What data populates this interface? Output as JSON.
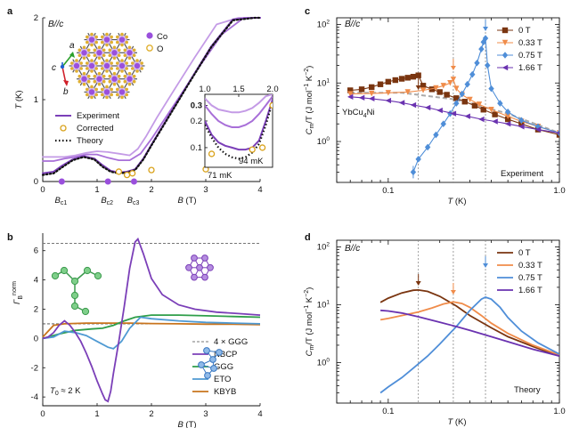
{
  "colors": {
    "experiment": "#7b3fb8",
    "experiment_light": "#c49be6",
    "corrected": "#d9a21b",
    "theory": "#111111",
    "c0T": "#7a3510",
    "c033T": "#f08c4a",
    "c075T": "#4f8ed8",
    "c166T": "#6a32b0",
    "nbcp": "#7b3fb8",
    "ggg": "#2e9e49",
    "eto": "#4f9ad3",
    "kbyb": "#c8741d",
    "ref": "#777777",
    "co": "#9a4fdc",
    "o": "#e0b030"
  },
  "panels": {
    "a": {
      "label": "a",
      "condition": "B//c",
      "axis_c": "c",
      "axis_a": "a",
      "axis_b": "b",
      "legend_co": "Co",
      "legend_o": "O",
      "inset_annotation_94": "94 mK",
      "inset_annotation_71": "71 mK"
    },
    "b": {
      "label": "b",
      "t0_label": "T",
      "t0_sub": "0",
      "t0_value": " ≈ 2 K"
    },
    "c": {
      "label": "c",
      "condition": "B//c",
      "compound": "YbCu",
      "compound_sub": "4",
      "compound_end": "Ni",
      "tag": "Experiment"
    },
    "d": {
      "label": "d",
      "condition": "B//c",
      "tag": "Theory"
    }
  },
  "chart_data": [
    {
      "id": "a",
      "type": "line",
      "xlabel": "B (T)",
      "ylabel": "T (K)",
      "xlim": [
        0,
        4
      ],
      "ylim": [
        0,
        2
      ],
      "xticks": [
        0,
        1,
        2,
        3,
        4
      ],
      "yticks": [
        0,
        1,
        2
      ],
      "critical_fields": {
        "labels": [
          "B",
          "B",
          "B"
        ],
        "subs": [
          "c1",
          "c2",
          "c3"
        ],
        "values": [
          0.35,
          1.2,
          1.68
        ]
      },
      "legend": [
        "Experiment",
        "Corrected",
        "Theory"
      ],
      "series": [
        {
          "name": "Experiment",
          "style": "light",
          "x": [
            0,
            0.2,
            0.4,
            0.6,
            0.8,
            1.0,
            1.2,
            1.4,
            1.6,
            1.75,
            1.9,
            2.1,
            2.4,
            2.8,
            3.2,
            3.6,
            4.0
          ],
          "y": [
            0.3,
            0.3,
            0.3,
            0.32,
            0.35,
            0.37,
            0.36,
            0.34,
            0.32,
            0.4,
            0.55,
            0.78,
            1.1,
            1.52,
            1.92,
            2.0,
            2.0
          ]
        },
        {
          "name": "Experiment",
          "style": "light2",
          "x": [
            0,
            0.2,
            0.4,
            0.6,
            0.8,
            1.0,
            1.2,
            1.4,
            1.6,
            1.8,
            2.0,
            2.2,
            2.5,
            2.9,
            3.3,
            3.7,
            4.0
          ],
          "y": [
            0.25,
            0.25,
            0.28,
            0.3,
            0.33,
            0.33,
            0.29,
            0.26,
            0.26,
            0.34,
            0.52,
            0.72,
            1.02,
            1.42,
            1.8,
            2.0,
            2.0
          ]
        },
        {
          "name": "Experiment",
          "style": "dark",
          "x": [
            0,
            0.2,
            0.35,
            0.55,
            0.75,
            0.95,
            1.1,
            1.25,
            1.4,
            1.55,
            1.7,
            1.85,
            2.0,
            2.3,
            2.7,
            3.1,
            3.5,
            3.9,
            4.0
          ],
          "y": [
            0.1,
            0.12,
            0.19,
            0.27,
            0.31,
            0.28,
            0.2,
            0.13,
            0.11,
            0.12,
            0.15,
            0.28,
            0.45,
            0.78,
            1.22,
            1.65,
            1.98,
            2.0,
            2.0
          ]
        },
        {
          "name": "Theory",
          "style": "dotted",
          "x": [
            0,
            0.2,
            0.35,
            0.55,
            0.75,
            0.95,
            1.1,
            1.25,
            1.4,
            1.55,
            1.7,
            1.85,
            2.0,
            2.3,
            2.7,
            3.1,
            3.5,
            3.9,
            4.0
          ],
          "y": [
            0.08,
            0.1,
            0.17,
            0.26,
            0.3,
            0.27,
            0.18,
            0.12,
            0.1,
            0.11,
            0.14,
            0.27,
            0.44,
            0.77,
            1.21,
            1.64,
            1.97,
            2.0,
            2.0
          ]
        },
        {
          "name": "Corrected",
          "style": "circles",
          "x": [
            1.4,
            1.55,
            1.65,
            2.0,
            3.0,
            3.95
          ],
          "y": [
            0.12,
            0.08,
            0.1,
            0.14,
            0.15,
            0.28
          ]
        }
      ],
      "inset": {
        "xlim": [
          1.0,
          2.0
        ],
        "ylim_log": [
          0.06,
          0.4
        ],
        "xticks": [
          1.0,
          1.5,
          2.0
        ],
        "yticks": [
          0.1,
          0.2,
          0.3
        ],
        "series": [
          {
            "style": "light",
            "x": [
              1.0,
              1.1,
              1.2,
              1.3,
              1.4,
              1.5,
              1.6,
              1.7,
              1.8,
              1.9,
              2.0
            ],
            "y": [
              0.36,
              0.3,
              0.27,
              0.26,
              0.25,
              0.25,
              0.26,
              0.28,
              0.32,
              0.38,
              0.4
            ]
          },
          {
            "style": "light2",
            "x": [
              1.0,
              1.1,
              1.2,
              1.3,
              1.4,
              1.5,
              1.6,
              1.7,
              1.8,
              1.9,
              2.0
            ],
            "y": [
              0.3,
              0.24,
              0.2,
              0.18,
              0.17,
              0.17,
              0.18,
              0.2,
              0.24,
              0.3,
              0.38
            ]
          },
          {
            "style": "dark",
            "x": [
              1.0,
              1.1,
              1.2,
              1.3,
              1.4,
              1.5,
              1.6,
              1.7,
              1.8,
              1.9,
              2.0
            ],
            "y": [
              0.2,
              0.14,
              0.115,
              0.105,
              0.1,
              0.095,
              0.095,
              0.1,
              0.12,
              0.2,
              0.35
            ]
          },
          {
            "style": "dotted",
            "x": [
              1.0,
              1.1,
              1.2,
              1.3,
              1.4,
              1.5,
              1.6,
              1.7,
              1.8,
              1.9,
              2.0
            ],
            "y": [
              0.18,
              0.13,
              0.1,
              0.085,
              0.078,
              0.075,
              0.078,
              0.088,
              0.11,
              0.18,
              0.33
            ]
          },
          {
            "style": "circles",
            "x": [
              1.1,
              1.7,
              1.85,
              2.0
            ],
            "y": [
              0.085,
              0.095,
              0.1,
              0.3
            ]
          }
        ]
      }
    },
    {
      "id": "b",
      "type": "line",
      "xlabel": "B (T)",
      "ylabel": "Γ",
      "ylabel_sup": "norm",
      "ylabel_sub": "B",
      "xlim": [
        0,
        4
      ],
      "ylim": [
        -4.6,
        7.2
      ],
      "xticks": [
        0,
        1,
        2,
        3,
        4
      ],
      "yticks": [
        -4,
        -2,
        0,
        2,
        4,
        6
      ],
      "legend": [
        "4 × GGG",
        "NBCP",
        "GGG",
        "ETO",
        "KBYB"
      ],
      "series": [
        {
          "name": "4 × GGG",
          "style": "dashed",
          "x": [
            0,
            4
          ],
          "y": [
            6.5,
            6.5
          ]
        },
        {
          "name": "NBCP",
          "x": [
            0,
            0.1,
            0.2,
            0.3,
            0.4,
            0.5,
            0.6,
            0.7,
            0.8,
            0.9,
            1.0,
            1.1,
            1.15,
            1.2,
            1.25,
            1.3,
            1.4,
            1.5,
            1.6,
            1.7,
            1.75,
            1.85,
            2.0,
            2.2,
            2.5,
            2.8,
            3.2,
            3.6,
            4.0
          ],
          "y": [
            0,
            0.1,
            0.4,
            0.9,
            1.2,
            0.9,
            0.4,
            -0.2,
            -1.0,
            -1.9,
            -2.9,
            -3.8,
            -4.2,
            -4.3,
            -3.6,
            -2.4,
            -0.2,
            2.2,
            4.8,
            6.6,
            6.8,
            5.8,
            4.1,
            3.0,
            2.3,
            2.0,
            1.8,
            1.7,
            1.6
          ]
        },
        {
          "name": "GGG",
          "x": [
            0,
            0.3,
            0.6,
            0.9,
            1.1,
            1.3,
            1.5,
            1.7,
            2.0,
            2.5,
            3.0,
            3.5,
            4.0
          ],
          "y": [
            0,
            0.3,
            0.55,
            0.65,
            0.7,
            0.9,
            1.2,
            1.45,
            1.6,
            1.6,
            1.55,
            1.5,
            1.45
          ]
        },
        {
          "name": "ETO",
          "x": [
            0,
            0.2,
            0.4,
            0.6,
            0.8,
            1.0,
            1.2,
            1.3,
            1.45,
            1.6,
            1.8,
            2.0,
            2.5,
            3.0,
            3.5,
            4.0
          ],
          "y": [
            0,
            0.1,
            0.5,
            0.4,
            0.2,
            -0.2,
            -0.6,
            -0.7,
            -0.2,
            0.7,
            1.45,
            1.35,
            1.2,
            1.1,
            1.05,
            1.0
          ]
        },
        {
          "name": "KBYB",
          "x": [
            0,
            0.2,
            0.4,
            0.8,
            1.2,
            1.6,
            2.0,
            2.5,
            3.0,
            3.5,
            4.0
          ],
          "y": [
            0.1,
            0.9,
            1.0,
            1.05,
            1.05,
            1.05,
            1.02,
            1.0,
            0.98,
            0.97,
            0.95
          ]
        },
        {
          "name": "ref1",
          "style": "dashed",
          "x": [
            0,
            4
          ],
          "y": [
            1.0,
            1.0
          ]
        }
      ]
    },
    {
      "id": "c",
      "type": "scatter",
      "xlabel": "T (K)",
      "ylabel": "C",
      "ylabel_sub": "m",
      "ylabel_rest": "/T (J mol",
      "ylabel_sup1": "−1",
      "ylabel_mid": " K",
      "ylabel_sup2": "−2",
      "ylabel_end": ")",
      "xscale": "log",
      "yscale": "log",
      "xlim": [
        0.05,
        1.0
      ],
      "ylim": [
        0.2,
        130
      ],
      "xticks": [
        0.1,
        1.0
      ],
      "xticklabels": [
        "0.1",
        "1.0"
      ],
      "yticks": [
        1,
        10,
        100
      ],
      "yticklabels": [
        "10",
        "10",
        "10"
      ],
      "ytick_sups": [
        "0",
        "1",
        "2"
      ],
      "vlines": [
        0.15,
        0.24,
        0.37
      ],
      "legend": [
        "0 T",
        "0.33 T",
        "0.75 T",
        "1.66 T"
      ],
      "series": [
        {
          "name": "0 T",
          "marker": "square",
          "x": [
            0.06,
            0.07,
            0.08,
            0.09,
            0.1,
            0.11,
            0.12,
            0.13,
            0.14,
            0.15,
            0.16,
            0.18,
            0.2,
            0.22,
            0.25,
            0.28,
            0.32,
            0.36,
            0.42,
            0.5,
            0.6,
            0.75,
            1.0
          ],
          "y": [
            7.5,
            7.8,
            8.5,
            9.5,
            10.5,
            11.2,
            11.8,
            12.3,
            12.8,
            13.5,
            9.0,
            7.8,
            7.0,
            6.3,
            5.5,
            4.8,
            4.1,
            3.5,
            2.9,
            2.4,
            2.0,
            1.6,
            1.3
          ]
        },
        {
          "name": "0.33 T",
          "marker": "triangle-down",
          "x": [
            0.06,
            0.08,
            0.1,
            0.13,
            0.16,
            0.19,
            0.21,
            0.23,
            0.24,
            0.25,
            0.27,
            0.3,
            0.34,
            0.4,
            0.5,
            0.6,
            0.75,
            1.0
          ],
          "y": [
            6.5,
            6.6,
            6.8,
            7.0,
            7.5,
            8.2,
            9.0,
            10.0,
            11.5,
            8.0,
            6.3,
            5.2,
            4.3,
            3.5,
            2.7,
            2.2,
            1.8,
            1.4
          ]
        },
        {
          "name": "0.75 T",
          "marker": "diamond",
          "x": [
            0.14,
            0.15,
            0.17,
            0.19,
            0.21,
            0.23,
            0.25,
            0.27,
            0.29,
            0.31,
            0.33,
            0.35,
            0.36,
            0.37,
            0.38,
            0.4,
            0.45,
            0.5,
            0.6,
            0.75,
            1.0
          ],
          "y": [
            0.3,
            0.5,
            0.8,
            1.3,
            2.0,
            3.0,
            4.5,
            6.5,
            9.5,
            14.0,
            22.0,
            38.0,
            50.0,
            58.0,
            20.0,
            8.0,
            4.5,
            3.2,
            2.3,
            1.8,
            1.4
          ]
        },
        {
          "name": "1.66 T",
          "marker": "triangle-left",
          "x": [
            0.06,
            0.07,
            0.08,
            0.1,
            0.12,
            0.14,
            0.17,
            0.2,
            0.24,
            0.29,
            0.35,
            0.42,
            0.5,
            0.6,
            0.75,
            1.0
          ],
          "y": [
            5.8,
            5.6,
            5.4,
            5.0,
            4.6,
            4.2,
            3.8,
            3.4,
            3.0,
            2.7,
            2.4,
            2.2,
            2.0,
            1.8,
            1.6,
            1.4
          ]
        }
      ],
      "reference_dashed": {
        "x": [
          0.06,
          0.12,
          0.25,
          0.5,
          1.0
        ],
        "y": [
          6.8,
          6.8,
          5.2,
          3.0,
          1.4
        ]
      }
    },
    {
      "id": "d",
      "type": "line",
      "xlabel": "T (K)",
      "ylabel": "C",
      "ylabel_sub": "m",
      "ylabel_rest": "/T (J mol",
      "ylabel_sup1": "−1",
      "ylabel_mid": " K",
      "ylabel_sup2": "−2",
      "ylabel_end": ")",
      "xscale": "log",
      "yscale": "log",
      "xlim": [
        0.05,
        1.0
      ],
      "ylim": [
        0.2,
        130
      ],
      "xticks": [
        0.1,
        1.0
      ],
      "xticklabels": [
        "0.1",
        "1.0"
      ],
      "yticks": [
        1,
        10,
        100
      ],
      "yticklabels": [
        "10",
        "10",
        "10"
      ],
      "ytick_sups": [
        "0",
        "1",
        "2"
      ],
      "vlines": [
        0.15,
        0.24,
        0.37
      ],
      "legend": [
        "0 T",
        "0.33 T",
        "0.75 T",
        "1.66 T"
      ],
      "series": [
        {
          "name": "0 T",
          "x": [
            0.09,
            0.1,
            0.12,
            0.14,
            0.15,
            0.17,
            0.2,
            0.25,
            0.3,
            0.4,
            0.5,
            0.7,
            1.0
          ],
          "y": [
            11.0,
            13.0,
            16.0,
            17.8,
            18.0,
            17.0,
            14.0,
            9.5,
            6.5,
            4.0,
            2.8,
            1.9,
            1.3
          ]
        },
        {
          "name": "0.33 T",
          "x": [
            0.09,
            0.1,
            0.12,
            0.15,
            0.18,
            0.21,
            0.24,
            0.27,
            0.3,
            0.35,
            0.4,
            0.5,
            0.7,
            1.0
          ],
          "y": [
            5.5,
            5.8,
            6.5,
            7.5,
            8.8,
            10.3,
            11.2,
            10.5,
            9.0,
            6.5,
            4.8,
            3.2,
            2.0,
            1.35
          ]
        },
        {
          "name": "0.75 T",
          "x": [
            0.09,
            0.1,
            0.12,
            0.14,
            0.17,
            0.2,
            0.25,
            0.3,
            0.35,
            0.37,
            0.4,
            0.45,
            0.5,
            0.6,
            0.75,
            1.0
          ],
          "y": [
            0.3,
            0.38,
            0.55,
            0.8,
            1.3,
            2.1,
            4.2,
            8.0,
            12.5,
            13.5,
            12.5,
            9.0,
            6.0,
            3.5,
            2.2,
            1.4
          ]
        },
        {
          "name": "1.66 T",
          "x": [
            0.09,
            0.1,
            0.12,
            0.15,
            0.2,
            0.25,
            0.3,
            0.4,
            0.5,
            0.7,
            1.0
          ],
          "y": [
            8.0,
            7.8,
            7.2,
            6.2,
            5.0,
            4.2,
            3.6,
            2.8,
            2.3,
            1.7,
            1.3
          ]
        }
      ]
    }
  ]
}
